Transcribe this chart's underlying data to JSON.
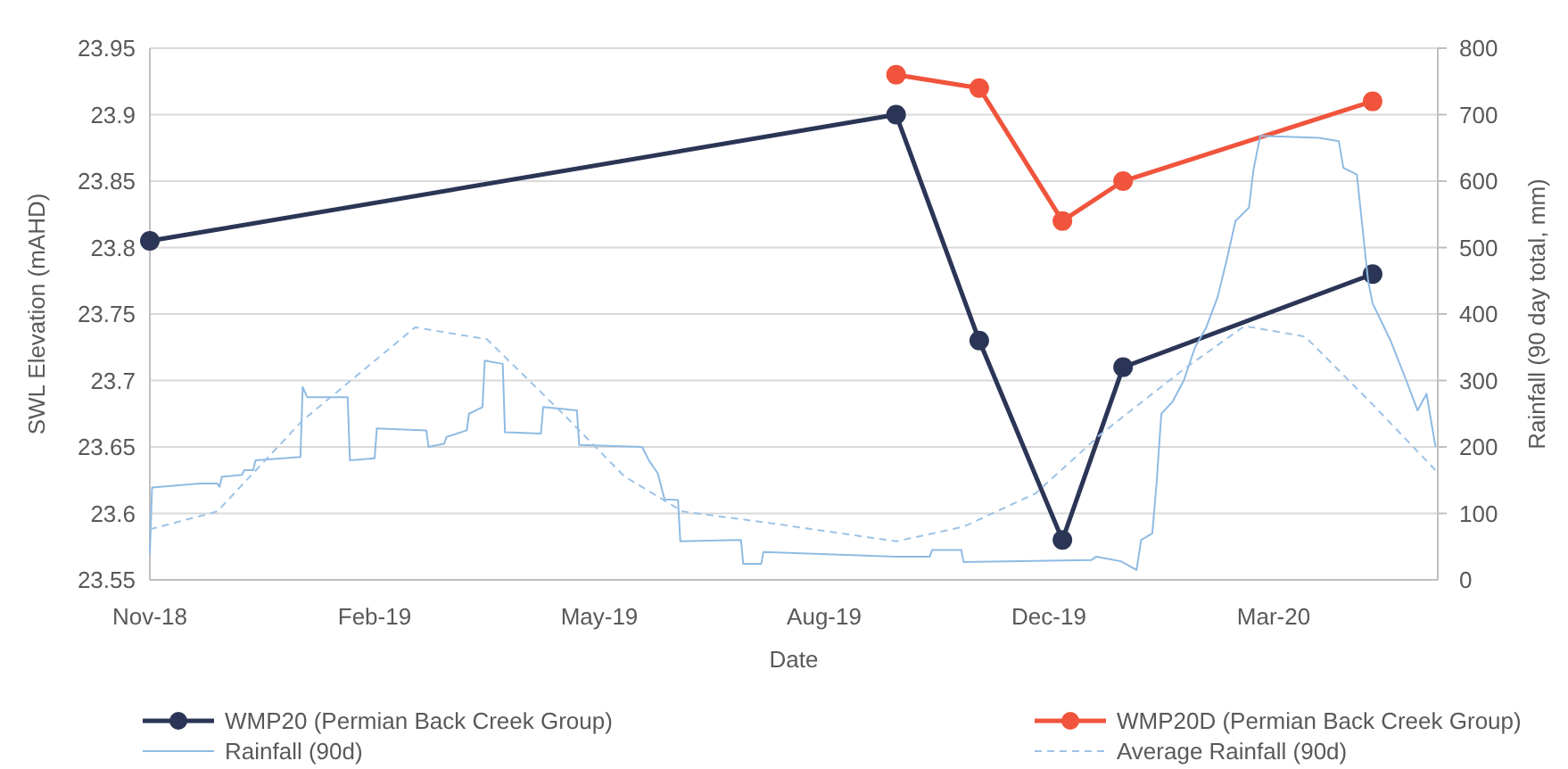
{
  "chart_data": {
    "type": "line",
    "xlabel": "Date",
    "ylabel": "SWL Elevation (mAHD)",
    "y2label": "Rainfall (90 day total, mm)",
    "xlim": [
      "2018-11-01",
      "2020-05-27"
    ],
    "xticks": [
      {
        "value": "2018-11-01",
        "label": "Nov-18"
      },
      {
        "value": "2019-02-09",
        "label": "Feb-19"
      },
      {
        "value": "2019-05-20",
        "label": "May-19"
      },
      {
        "value": "2019-08-28",
        "label": "Aug-19"
      },
      {
        "value": "2019-12-06",
        "label": "Dec-19"
      },
      {
        "value": "2020-03-15",
        "label": "Mar-20"
      }
    ],
    "ylim": [
      23.55,
      23.95
    ],
    "yticks": [
      {
        "value": 23.55,
        "label": "23.55"
      },
      {
        "value": 23.6,
        "label": "23.6"
      },
      {
        "value": 23.65,
        "label": "23.65"
      },
      {
        "value": 23.7,
        "label": "23.7"
      },
      {
        "value": 23.75,
        "label": "23.75"
      },
      {
        "value": 23.8,
        "label": "23.8"
      },
      {
        "value": 23.85,
        "label": "23.85"
      },
      {
        "value": 23.9,
        "label": "23.9"
      },
      {
        "value": 23.95,
        "label": "23.95"
      }
    ],
    "y2lim": [
      0,
      800
    ],
    "y2ticks": [
      0,
      100,
      200,
      300,
      400,
      500,
      600,
      700,
      800
    ],
    "grid": "y",
    "legend": "bottom",
    "series": [
      {
        "name": "WMP20 (Permian Back Creek Group)",
        "color": "#2b3556",
        "marker": "circle",
        "line_style": "solid",
        "x": [
          "2018-11-01",
          "2019-09-29",
          "2019-11-05",
          "2019-12-12",
          "2020-01-08",
          "2020-04-28"
        ],
        "values": [
          23.805,
          23.9,
          23.73,
          23.58,
          23.71,
          23.78
        ]
      },
      {
        "name": "WMP20D (Permian Back Creek Group)",
        "color": "#f0543c",
        "marker": "circle",
        "line_style": "solid",
        "x": [
          "2019-09-29",
          "2019-11-05",
          "2019-12-12",
          "2020-01-08",
          "2020-04-28"
        ],
        "values": [
          23.93,
          23.92,
          23.82,
          23.85,
          23.91
        ]
      },
      {
        "name": "Rainfall (90d)",
        "color": "#8fbbe3",
        "marker": "none",
        "line_style": "solid",
        "axis": "y2",
        "x": [
          "2018-11-01",
          "2018-11-02",
          "2018-11-23",
          "2018-12-01",
          "2018-12-02",
          "2018-12-03",
          "2018-12-12",
          "2018-12-13",
          "2018-12-17",
          "2018-12-18",
          "2019-01-07",
          "2019-01-08",
          "2019-01-10",
          "2019-01-28",
          "2019-01-29",
          "2019-02-09",
          "2019-02-10",
          "2019-03-04",
          "2019-03-05",
          "2019-03-12",
          "2019-03-13",
          "2019-03-22",
          "2019-03-23",
          "2019-03-29",
          "2019-03-30",
          "2019-04-07",
          "2019-04-08",
          "2019-04-24",
          "2019-04-25",
          "2019-05-10",
          "2019-05-11",
          "2019-06-08",
          "2019-06-11",
          "2019-06-15",
          "2019-06-18",
          "2019-06-24",
          "2019-06-25",
          "2019-07-22",
          "2019-07-23",
          "2019-07-31",
          "2019-08-01",
          "2019-09-29",
          "2019-10-14",
          "2019-10-15",
          "2019-10-28",
          "2019-10-29",
          "2019-12-25",
          "2019-12-27",
          "2020-01-07",
          "2020-01-14",
          "2020-01-16",
          "2020-01-21",
          "2020-01-23",
          "2020-01-25",
          "2020-01-30",
          "2020-02-04",
          "2020-02-09",
          "2020-02-14",
          "2020-02-19",
          "2020-02-23",
          "2020-02-27",
          "2020-03-04",
          "2020-03-06",
          "2020-03-09",
          "2020-04-04",
          "2020-04-13",
          "2020-04-15",
          "2020-04-21",
          "2020-04-26",
          "2020-04-28",
          "2020-05-06",
          "2020-05-13",
          "2020-05-18",
          "2020-05-22",
          "2020-05-26"
        ],
        "values": [
          40,
          139,
          145,
          145,
          140,
          155,
          158,
          165,
          165,
          180,
          185,
          290,
          275,
          275,
          180,
          183,
          228,
          225,
          200,
          205,
          215,
          225,
          250,
          260,
          330,
          325,
          222,
          220,
          260,
          255,
          203,
          200,
          180,
          160,
          121,
          120,
          58,
          60,
          24,
          24,
          42,
          35,
          35,
          45,
          45,
          27,
          30,
          35,
          28,
          15,
          60,
          70,
          150,
          250,
          268,
          300,
          350,
          380,
          425,
          480,
          540,
          560,
          617,
          668,
          665,
          660,
          620,
          610,
          450,
          416,
          360,
          300,
          255,
          280,
          200
        ]
      },
      {
        "name": "Average Rainfall (90d)",
        "color": "#9dc3e6",
        "marker": "none",
        "line_style": "dashed",
        "axis": "y2",
        "x": [
          "2018-11-01",
          "2018-12-01",
          "2019-01-08",
          "2019-02-27",
          "2019-03-31",
          "2019-05-05",
          "2019-05-31",
          "2019-06-26",
          "2019-08-05",
          "2019-09-29",
          "2019-10-29",
          "2019-11-30",
          "2019-12-29",
          "2020-02-04",
          "2020-03-02",
          "2020-03-29",
          "2020-04-28",
          "2020-05-26"
        ],
        "values": [
          76,
          103,
          240,
          380,
          362,
          246,
          156,
          103,
          85,
          58,
          80,
          130,
          219,
          317,
          382,
          366,
          264,
          165
        ]
      }
    ]
  }
}
